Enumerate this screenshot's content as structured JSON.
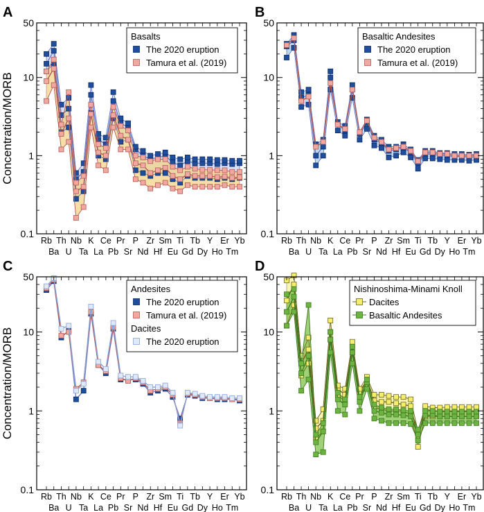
{
  "figure": {
    "ylabel": "Concentration/MORB",
    "elements": [
      "Rb",
      "Ba",
      "Th",
      "U",
      "Nb",
      "Ta",
      "K",
      "La",
      "Ce",
      "Pb",
      "Pr",
      "Sr",
      "P",
      "Nd",
      "Zr",
      "Hf",
      "Sm",
      "Eu",
      "Ti",
      "Gd",
      "Tb",
      "Dy",
      "Y",
      "Ho",
      "Er",
      "Tm",
      "Yb"
    ],
    "ytick_labels": [
      "0.1",
      "1",
      "10",
      "50"
    ],
    "colors": {
      "blue_fill": "#1f4e9c",
      "blue_edge": "#0b2a66",
      "blue_line": "#6f7fc9",
      "pink_fill": "#f0a8a0",
      "pink_edge": "#b45a55",
      "pink_band": "#f2d48a",
      "band_blue": "#a9c9ea",
      "dacite_fill": "#dfe9f7",
      "dacite_edge": "#8aa3d6",
      "yellow_fill": "#f4ee6c",
      "yellow_edge": "#6b6320",
      "yellow_band": "#f7f29a",
      "green_fill": "#6db33f",
      "green_edge": "#3d7a22",
      "green_band": "#7fc24a"
    }
  },
  "chart_data": [
    {
      "panel": "A",
      "type": "line",
      "title": "",
      "xlabel": "",
      "ylabel": "Concentration/MORB",
      "yscale": "log",
      "ylim": [
        0.1,
        50
      ],
      "categories": [
        "Rb",
        "Ba",
        "Th",
        "U",
        "Nb",
        "Ta",
        "K",
        "La",
        "Ce",
        "Pb",
        "Pr",
        "Sr",
        "P",
        "Nd",
        "Zr",
        "Hf",
        "Sm",
        "Eu",
        "Ti",
        "Gd",
        "Tb",
        "Dy",
        "Y",
        "Ho",
        "Er",
        "Tm",
        "Yb"
      ],
      "legend": {
        "title": "Basalts",
        "position": "top-right",
        "entries": [
          "The 2020 eruption",
          "Tamura et al. (2019)"
        ]
      },
      "series": [
        {
          "name": "The 2020 eruption",
          "style": "blue",
          "band": "#c9d6f0",
          "values": [
            15,
            22,
            3.3,
            4.0,
            0.5,
            0.62,
            6.0,
            1.6,
            1.4,
            5.0,
            2.6,
            2.3,
            1.2,
            1.0,
            0.9,
            0.95,
            1.0,
            0.82,
            0.75,
            0.85,
            0.8,
            0.8,
            0.8,
            0.78,
            0.8,
            0.78,
            0.8
          ],
          "min": [
            12,
            15,
            2.0,
            2.3,
            0.28,
            0.35,
            3.5,
            1.0,
            0.9,
            3.0,
            1.5,
            1.6,
            0.65,
            0.6,
            0.55,
            0.6,
            0.6,
            0.5,
            0.45,
            0.55,
            0.52,
            0.52,
            0.52,
            0.5,
            0.52,
            0.5,
            0.52
          ],
          "max": [
            20,
            27,
            4.5,
            5.5,
            0.6,
            0.8,
            8.0,
            1.9,
            1.7,
            6.5,
            3.0,
            2.6,
            1.3,
            1.15,
            1.0,
            1.05,
            1.1,
            0.95,
            0.9,
            0.95,
            0.9,
            0.9,
            0.9,
            0.88,
            0.88,
            0.86,
            0.86
          ]
        },
        {
          "name": "Tamura et al. (2019)",
          "style": "pink",
          "band": "#f2d48a",
          "values": [
            9,
            13,
            1.9,
            3.0,
            0.35,
            0.4,
            3.4,
            1.1,
            1.0,
            3.3,
            1.8,
            1.6,
            0.8,
            0.75,
            0.6,
            0.65,
            0.7,
            0.55,
            0.5,
            0.58,
            0.55,
            0.55,
            0.55,
            0.53,
            0.54,
            0.52,
            0.53
          ],
          "min": [
            5.0,
            8.0,
            1.2,
            1.5,
            0.16,
            0.22,
            2.3,
            0.75,
            0.65,
            2.3,
            1.2,
            1.2,
            0.5,
            0.45,
            0.38,
            0.42,
            0.45,
            0.38,
            0.35,
            0.42,
            0.4,
            0.4,
            0.4,
            0.4,
            0.42,
            0.4,
            0.4
          ],
          "max": [
            12,
            17,
            2.5,
            6.5,
            0.45,
            0.55,
            4.5,
            1.4,
            1.25,
            4.2,
            2.4,
            2.1,
            1.0,
            0.95,
            0.85,
            0.9,
            0.9,
            0.72,
            0.65,
            0.72,
            0.68,
            0.66,
            0.66,
            0.65,
            0.65,
            0.62,
            0.62
          ]
        }
      ]
    },
    {
      "panel": "B",
      "type": "line",
      "title": "",
      "xlabel": "",
      "ylabel": "",
      "yscale": "log",
      "ylim": [
        0.1,
        50
      ],
      "categories": [
        "Rb",
        "Ba",
        "Th",
        "U",
        "Nb",
        "Ta",
        "K",
        "La",
        "Ce",
        "Pb",
        "Pr",
        "Sr",
        "P",
        "Nd",
        "Zr",
        "Hf",
        "Sm",
        "Eu",
        "Ti",
        "Gd",
        "Tb",
        "Dy",
        "Y",
        "Ho",
        "Er",
        "Tm",
        "Yb"
      ],
      "legend": {
        "title": "Basaltic Andesites",
        "position": "top-right",
        "entries": [
          "The 2020 eruption",
          "Tamura et al. (2019)"
        ]
      },
      "series": [
        {
          "name": "The 2020 eruption",
          "style": "blue",
          "band": "#a9c9ea",
          "values": [
            25,
            30,
            5.5,
            6.0,
            1.0,
            1.3,
            10,
            2.5,
            2.1,
            7.0,
            1.9,
            2.6,
            1.6,
            1.45,
            1.15,
            1.2,
            1.25,
            1.1,
            0.8,
            1.05,
            1.05,
            1.0,
            1.0,
            0.97,
            0.98,
            0.95,
            0.97
          ],
          "min": [
            18,
            24,
            4.2,
            4.5,
            0.75,
            1.0,
            7.0,
            2.1,
            1.8,
            5.5,
            1.6,
            2.2,
            1.35,
            1.25,
            0.95,
            1.0,
            1.1,
            0.95,
            0.68,
            0.92,
            0.92,
            0.9,
            0.88,
            0.88,
            0.88,
            0.86,
            0.88
          ],
          "max": [
            27,
            35,
            6.5,
            7.0,
            1.4,
            1.6,
            12,
            2.7,
            2.4,
            8.0,
            2.0,
            2.9,
            1.8,
            1.6,
            1.3,
            1.3,
            1.4,
            1.2,
            0.88,
            1.15,
            1.15,
            1.08,
            1.08,
            1.05,
            1.05,
            1.03,
            1.05
          ]
        },
        {
          "name": "Tamura et al. (2019)",
          "style": "pink",
          "band": null,
          "values": [
            26,
            32,
            5.0,
            5.7,
            1.3,
            1.5,
            8.5,
            2.5,
            2.2,
            7.0,
            2.0,
            2.8,
            1.7,
            1.5,
            1.2,
            1.25,
            1.3,
            1.15,
            0.85,
            1.1,
            1.1,
            1.05,
            1.05,
            1.0,
            1.0,
            1.0,
            1.0
          ],
          "min": null,
          "max": null
        }
      ]
    },
    {
      "panel": "C",
      "type": "line",
      "title": "",
      "xlabel": "",
      "ylabel": "Concentration/MORB",
      "yscale": "log",
      "ylim": [
        0.1,
        50
      ],
      "categories": [
        "Rb",
        "Ba",
        "Th",
        "U",
        "Nb",
        "Ta",
        "K",
        "La",
        "Ce",
        "Pb",
        "Pr",
        "Sr",
        "P",
        "Nd",
        "Zr",
        "Hf",
        "Sm",
        "Eu",
        "Ti",
        "Gd",
        "Tb",
        "Dy",
        "Y",
        "Ho",
        "Er",
        "Tm",
        "Yb"
      ],
      "legend": {
        "title": "Andesites",
        "position": "top-right",
        "entries": [
          "The 2020 eruption",
          "Tamura et al. (2019)"
        ],
        "title2": "Dacites",
        "entries2": [
          "The 2020 eruption"
        ]
      },
      "series": [
        {
          "name": "The 2020 eruption",
          "group": "Andesites",
          "style": "blue",
          "band": null,
          "values": [
            34,
            44,
            8.5,
            10.5,
            1.4,
            1.8,
            17,
            3.8,
            3.0,
            11,
            2.5,
            2.5,
            2.5,
            2.2,
            1.7,
            1.8,
            1.9,
            1.5,
            0.8,
            1.6,
            1.55,
            1.45,
            1.45,
            1.4,
            1.4,
            1.4,
            1.35
          ],
          "min": null,
          "max": null
        },
        {
          "name": "Tamura et al. (2019)",
          "group": "Andesites",
          "style": "pink",
          "band": null,
          "values": [
            36,
            46,
            9.0,
            10.0,
            1.9,
            2.3,
            18,
            3.8,
            3.2,
            11.5,
            2.6,
            2.4,
            2.6,
            2.3,
            1.8,
            1.9,
            2.0,
            1.6,
            0.7,
            1.65,
            1.6,
            1.5,
            1.45,
            1.45,
            1.45,
            1.4,
            1.4
          ],
          "min": null,
          "max": null
        },
        {
          "name": "The 2020 eruption",
          "group": "Dacites",
          "style": "dacite",
          "band": null,
          "values": [
            38,
            48,
            11,
            12,
            1.8,
            2.2,
            21,
            4.2,
            3.4,
            13,
            2.8,
            2.7,
            2.7,
            2.4,
            2.0,
            2.0,
            2.1,
            1.7,
            0.65,
            1.7,
            1.65,
            1.55,
            1.5,
            1.5,
            1.5,
            1.45,
            1.45
          ],
          "min": null,
          "max": null
        }
      ]
    },
    {
      "panel": "D",
      "type": "line",
      "title": "",
      "xlabel": "",
      "ylabel": "",
      "yscale": "log",
      "ylim": [
        0.1,
        50
      ],
      "categories": [
        "Rb",
        "Ba",
        "Th",
        "U",
        "Nb",
        "Ta",
        "K",
        "La",
        "Ce",
        "Pb",
        "Pr",
        "Sr",
        "P",
        "Nd",
        "Zr",
        "Hf",
        "Sm",
        "Eu",
        "Ti",
        "Gd",
        "Tb",
        "Dy",
        "Y",
        "Ho",
        "Er",
        "Tm",
        "Yb"
      ],
      "legend": {
        "title": "Nishinoshima-Minami Knoll",
        "position": "top-right",
        "entries": [
          "Dacites",
          "Basaltic Andesites"
        ]
      },
      "series": [
        {
          "name": "Dacites",
          "style": "yellow",
          "band": "#f7f29a",
          "values": [
            25,
            40,
            4.0,
            6.0,
            0.6,
            0.75,
            10,
            1.9,
            1.6,
            6.5,
            1.7,
            2.5,
            1.35,
            1.3,
            1.3,
            1.25,
            1.2,
            1.15,
            0.45,
            1.05,
            1.0,
            1.0,
            1.0,
            1.0,
            1.0,
            1.0,
            1.0
          ],
          "min": [
            12,
            22,
            2.8,
            4.0,
            0.45,
            0.55,
            8.0,
            1.6,
            1.3,
            5.5,
            1.5,
            2.2,
            1.1,
            1.05,
            1.0,
            1.0,
            1.0,
            0.9,
            0.35,
            0.85,
            0.85,
            0.85,
            0.85,
            0.85,
            0.85,
            0.85,
            0.85
          ],
          "max": [
            45,
            52,
            5.0,
            8.5,
            0.75,
            1.05,
            14,
            2.1,
            1.9,
            7.5,
            1.9,
            2.7,
            1.6,
            1.6,
            1.55,
            1.5,
            1.5,
            1.4,
            0.55,
            1.15,
            1.1,
            1.1,
            1.12,
            1.12,
            1.12,
            1.12,
            1.12
          ]
        },
        {
          "name": "Basaltic Andesites",
          "style": "green",
          "band": "#7fc24a",
          "values": [
            18,
            28,
            3.0,
            5.0,
            0.4,
            0.55,
            8.0,
            1.4,
            1.2,
            5.5,
            1.3,
            2.3,
            1.0,
            0.95,
            0.9,
            0.9,
            0.88,
            0.85,
            0.5,
            0.88,
            0.88,
            0.85,
            0.85,
            0.85,
            0.85,
            0.85,
            0.85
          ],
          "min": [
            12,
            18,
            1.8,
            2.5,
            0.28,
            0.3,
            5.5,
            1.0,
            0.9,
            4.0,
            1.0,
            1.9,
            0.8,
            0.75,
            0.7,
            0.7,
            0.7,
            0.68,
            0.42,
            0.7,
            0.7,
            0.7,
            0.7,
            0.7,
            0.7,
            0.7,
            0.7
          ],
          "max": [
            30,
            35,
            4.0,
            22,
            0.5,
            0.7,
            10,
            1.7,
            1.4,
            6.5,
            1.5,
            2.5,
            1.2,
            1.1,
            1.05,
            1.05,
            1.02,
            1.0,
            0.58,
            1.0,
            1.0,
            0.98,
            0.98,
            0.98,
            0.98,
            0.98,
            0.98
          ]
        }
      ]
    }
  ]
}
